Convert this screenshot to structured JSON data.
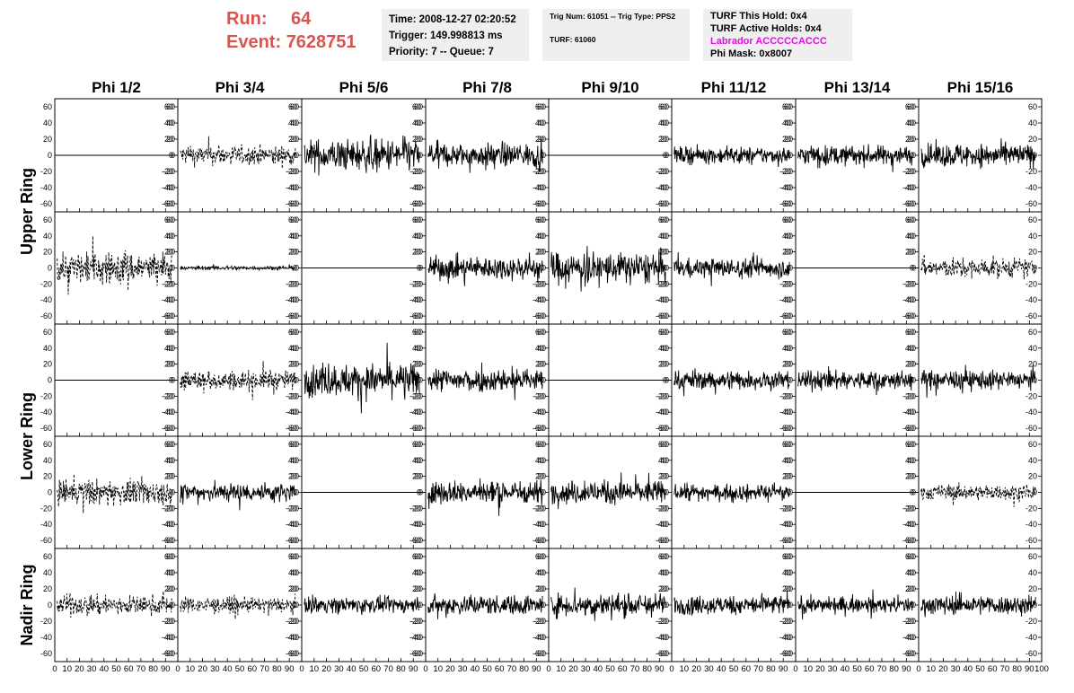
{
  "header": {
    "run_label": "Run:",
    "run_value": "64",
    "event_label": "Event:",
    "event_value": "7628751",
    "time": "Time: 2008-12-27 02:20:52",
    "trigger": "Trigger: 149.998813 ms",
    "priority": "Priority: 7 -- Queue: 7",
    "trig_num": "Trig Num: 61051 -- Trig Type: PPS2",
    "turf": "TURF: 61060",
    "turf_this_hold": "TURF This Hold: 0x4",
    "turf_active_holds": "TURF Active Holds: 0x4",
    "labrador": "Labrador ACCCCCACCC",
    "phi_mask": "Phi Mask: 0x8007"
  },
  "colors": {
    "header_red": "#d9534f",
    "info_bg": "#efefef",
    "labrador": "#e010e0",
    "trace": "#000000"
  },
  "chart_data": {
    "type": "line",
    "columns": [
      "Phi 1/2",
      "Phi 3/4",
      "Phi 5/6",
      "Phi 7/8",
      "Phi 9/10",
      "Phi 11/12",
      "Phi 13/14",
      "Phi 15/16"
    ],
    "ring_labels": [
      "Upper Ring",
      "Lower Ring",
      "Nadir Ring"
    ],
    "y_ticks": [
      60,
      40,
      20,
      0,
      -20,
      -40,
      -60
    ],
    "ylim": [
      -70,
      70
    ],
    "x_ticks": [
      0,
      10,
      20,
      30,
      40,
      50,
      60,
      70,
      80,
      90,
      100
    ],
    "xlim": [
      0,
      100
    ],
    "panels": [
      [
        "flat",
        "dashed",
        "solid",
        "solid",
        "flat",
        "solid",
        "solid",
        "solid"
      ],
      [
        "dashed",
        "small",
        "flat",
        "solid",
        "solid",
        "solid",
        "flat",
        "dashed"
      ],
      [
        "flat",
        "dashed",
        "solid",
        "solid",
        "flat",
        "solid",
        "solid",
        "solid"
      ],
      [
        "dashed",
        "solid",
        "flat",
        "solid",
        "solid",
        "solid",
        "flat",
        "dashed"
      ],
      [
        "dashed",
        "dashed",
        "solid",
        "solid",
        "solid",
        "solid",
        "solid",
        "solid"
      ]
    ],
    "amplitudes": [
      [
        0,
        15,
        25,
        18,
        0,
        13,
        15,
        18
      ],
      [
        25,
        3,
        0,
        18,
        25,
        15,
        0,
        15
      ],
      [
        0,
        15,
        25,
        18,
        0,
        15,
        15,
        15
      ],
      [
        20,
        15,
        0,
        18,
        18,
        12,
        0,
        12
      ],
      [
        15,
        12,
        12,
        15,
        18,
        15,
        12,
        15
      ]
    ]
  }
}
